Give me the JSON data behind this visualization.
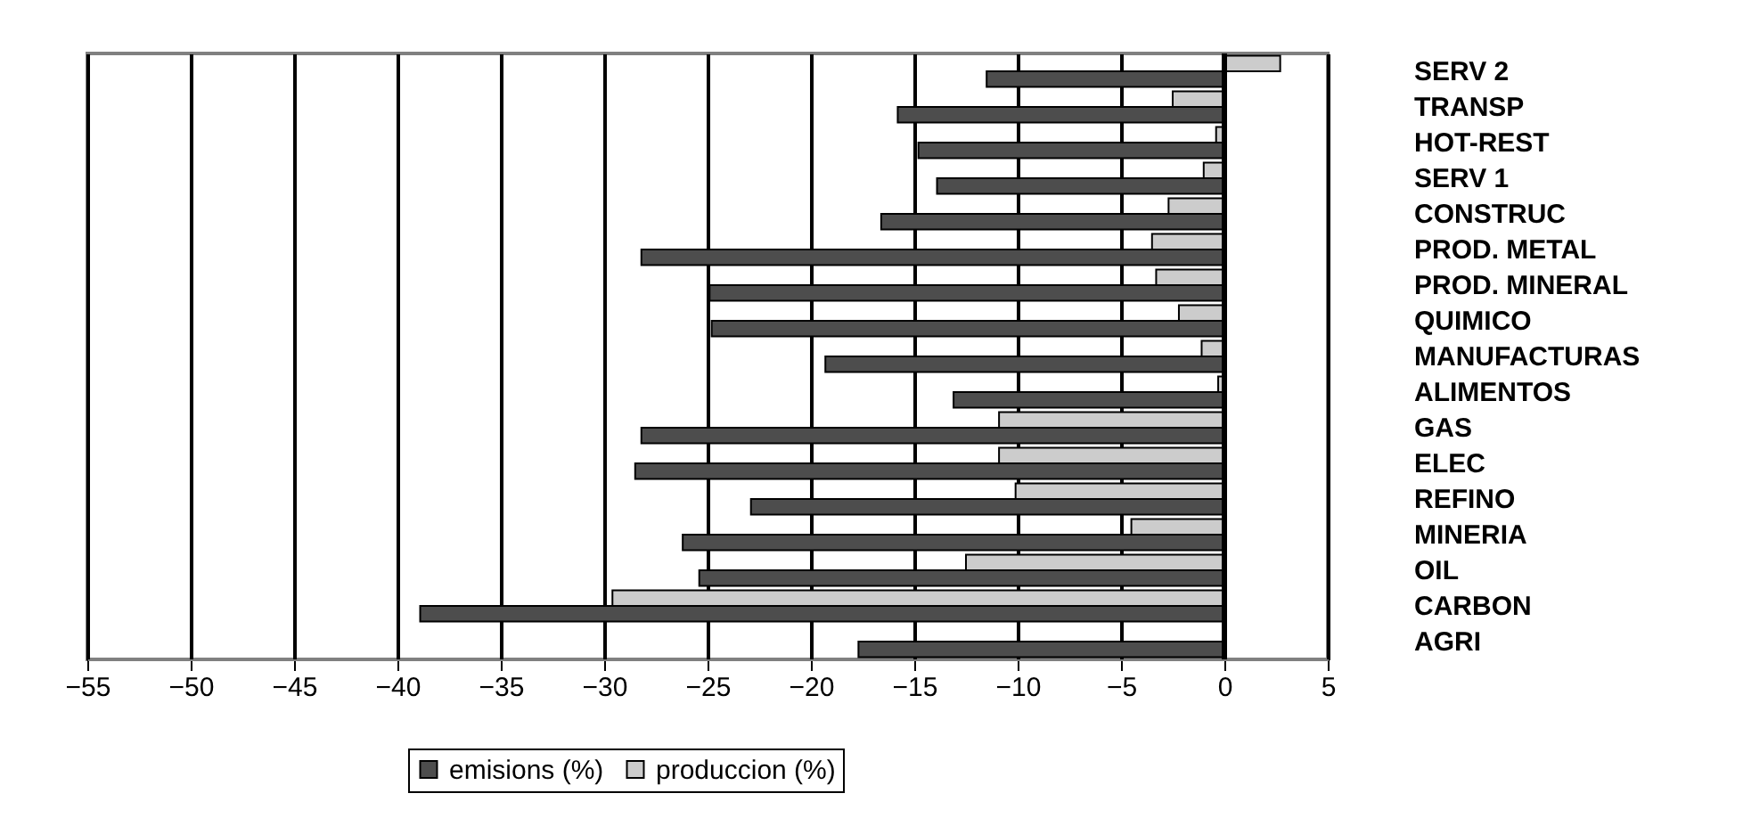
{
  "chart_data": {
    "type": "bar",
    "orientation": "horizontal",
    "categories": [
      "SERV 2",
      "TRANSP",
      "HOT-REST",
      "SERV 1",
      "CONSTRUC",
      "PROD. METAL",
      "PROD. MINERAL",
      "QUIMICO",
      "MANUFACTURAS",
      "ALIMENTOS",
      "GAS",
      "ELEC",
      "REFINO",
      "MINERIA",
      "OIL",
      "CARBON",
      "AGRI"
    ],
    "series": [
      {
        "name": "produccion (%)",
        "color": "#cccccc",
        "values": [
          2.7,
          -2.5,
          -0.4,
          -1.0,
          -2.7,
          -3.5,
          -3.3,
          -2.2,
          -1.1,
          -0.3,
          -10.9,
          -10.9,
          -10.1,
          -4.5,
          -12.5,
          -29.6,
          null
        ]
      },
      {
        "name": "emisions (%)",
        "color": "#4d4d4d",
        "values": [
          -11.5,
          -15.8,
          -14.8,
          -13.9,
          -16.6,
          -28.2,
          -24.9,
          -24.8,
          -19.3,
          -13.1,
          -28.2,
          -28.5,
          -22.9,
          -26.2,
          -25.4,
          -38.9,
          -17.7
        ]
      }
    ],
    "xlim": [
      -55,
      5
    ],
    "xticks": [
      -55,
      -50,
      -45,
      -40,
      -35,
      -30,
      -25,
      -20,
      -15,
      -10,
      -5,
      0,
      5
    ],
    "grid": "x",
    "legend": "bottom",
    "ref_lines": [
      {
        "axis": "x",
        "value": 0
      }
    ]
  }
}
